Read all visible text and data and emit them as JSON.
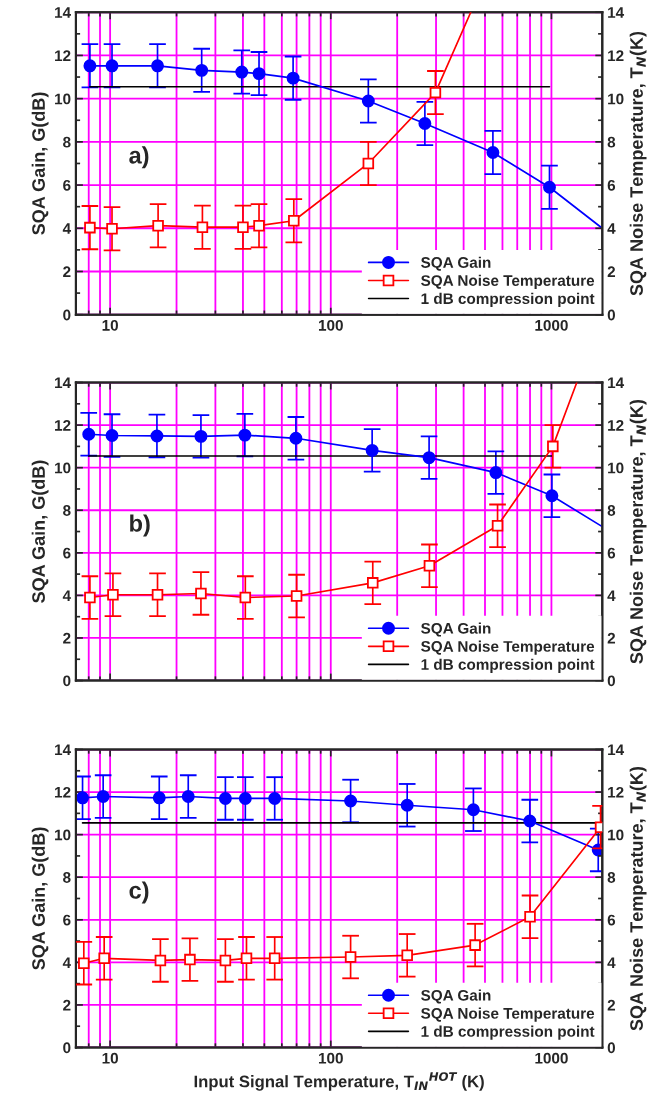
{
  "chart_data": [
    {
      "type": "line",
      "ylabel": "SQA Gain, G(dB)",
      "y2label": "SQA Noise Temperature, T$_{N}$(K)",
      "log": "x",
      "xlim": [
        7,
        1700
      ],
      "xticks": [
        10,
        100,
        1000
      ],
      "ylim": [
        0,
        14
      ],
      "yticks": [
        0,
        2,
        4,
        6,
        8,
        10,
        12,
        14
      ],
      "y2lim": [
        0,
        14
      ],
      "y2ticks": [
        0,
        2,
        4,
        6,
        8,
        10,
        12,
        14
      ],
      "grid": true,
      "legend": "bottom right",
      "annotations": [
        "a)"
      ],
      "series": [
        {
          "name": "SQA Gain",
          "color": "#0000ff",
          "marker": "circle",
          "x": [
            8.1,
            10.2,
            16.4,
            26,
            39.5,
            47.3,
            67.5,
            148,
            267,
            543,
            980
          ],
          "values": [
            11.52,
            11.52,
            11.52,
            11.31,
            11.23,
            11.16,
            10.95,
            9.89,
            8.85,
            7.51,
            5.9
          ],
          "errors": [
            1,
            1,
            1,
            1,
            1,
            1,
            1,
            1,
            1,
            1,
            1
          ]
        },
        {
          "color": "#0000ff",
          "marker": "none",
          "x": [
            980,
            1700
          ],
          "values": [
            5.9,
            4.0
          ]
        },
        {
          "name": "SQA Noise Temperature",
          "color": "#ff0000",
          "marker": "square",
          "axis": "y2",
          "x": [
            8.1,
            10.2,
            16.5,
            26.2,
            40,
            47.3,
            68,
            148,
            298
          ],
          "values": [
            4.03,
            3.98,
            4.12,
            4.05,
            4.05,
            4.12,
            4.35,
            7.0,
            10.28
          ],
          "errors": [
            1,
            1,
            1,
            1,
            1,
            1,
            1,
            1,
            1
          ]
        },
        {
          "color": "#ff0000",
          "marker": "none",
          "axis": "y2",
          "x": [
            298,
            431
          ],
          "values": [
            10.28,
            14
          ]
        },
        {
          "name": "1 dB compression point",
          "color": "#000000",
          "marker": "none",
          "x": [
            8.1,
            980
          ],
          "values": [
            10.55,
            10.55
          ]
        }
      ]
    },
    {
      "type": "line",
      "ylabel": "SQA Gain, G(dB)",
      "y2label": "SQA Noise Temperature, T$_{N}$(K)",
      "log": "x",
      "xlim": [
        7,
        1700
      ],
      "xticks": [
        10,
        100,
        1000
      ],
      "ylim": [
        0,
        14
      ],
      "yticks": [
        0,
        2,
        4,
        6,
        8,
        10,
        12,
        14
      ],
      "y2lim": [
        0,
        14
      ],
      "y2ticks": [
        0,
        2,
        4,
        6,
        8,
        10,
        12,
        14
      ],
      "tick_labels": "y",
      "grid": true,
      "legend": "bottom right",
      "annotations": [
        "b)"
      ],
      "series": [
        {
          "name": "SQA Gain",
          "color": "#0000ff",
          "marker": "circle",
          "x": [
            8.0,
            10.2,
            16.3,
            25.8,
            40.8,
            69.5,
            154,
            279,
            560,
            1005
          ],
          "values": [
            11.57,
            11.51,
            11.49,
            11.47,
            11.53,
            11.38,
            10.81,
            10.47,
            9.77,
            8.68
          ],
          "errors": [
            1,
            1,
            1,
            1,
            1,
            1,
            1,
            1,
            1,
            1
          ]
        },
        {
          "color": "#0000ff",
          "marker": "none",
          "x": [
            1005,
            1700
          ],
          "values": [
            8.68,
            7.23
          ]
        },
        {
          "name": "SQA Noise Temperature",
          "color": "#ff0000",
          "marker": "square",
          "axis": "y2",
          "x": [
            8.1,
            10.3,
            16.4,
            25.8,
            41,
            70,
            155,
            280,
            570,
            1015
          ],
          "values": [
            3.9,
            4.03,
            4.03,
            4.09,
            3.9,
            3.97,
            4.59,
            5.39,
            7.27,
            11.0
          ],
          "errors": [
            1,
            1,
            1,
            1,
            1,
            1,
            1,
            1,
            1,
            1
          ]
        },
        {
          "color": "#ff0000",
          "marker": "none",
          "axis": "y2",
          "x": [
            1015,
            1303
          ],
          "values": [
            11.0,
            14
          ]
        },
        {
          "name": "1 dB compression point",
          "color": "#000000",
          "marker": "none",
          "x": [
            8.0,
            1005
          ],
          "values": [
            10.55,
            10.55
          ]
        }
      ]
    },
    {
      "type": "line",
      "xlabel": "Input Signal Temperature, T$_{IN}$$^{HOT}$ (K)",
      "ylabel": "SQA Gain, G(dB)",
      "y2label": "SQA Noise Temperature, T$_{N}$(K)",
      "log": "x",
      "xlim": [
        7,
        1700
      ],
      "xticks": [
        10,
        100,
        1000
      ],
      "ylim": [
        0,
        14
      ],
      "yticks": [
        0,
        2,
        4,
        6,
        8,
        10,
        12,
        14
      ],
      "y2lim": [
        0,
        14
      ],
      "y2ticks": [
        0,
        2,
        4,
        6,
        8,
        10,
        12,
        14
      ],
      "grid": true,
      "legend": "bottom right",
      "annotations": [
        "c)"
      ],
      "series": [
        {
          "name": "SQA Gain",
          "color": "#0000ff",
          "marker": "circle",
          "x": [
            7.5,
            9.3,
            16.7,
            22.6,
            33.3,
            41,
            55.7,
            123,
            222,
            443,
            798,
            1630
          ],
          "values": [
            11.73,
            11.79,
            11.73,
            11.79,
            11.7,
            11.7,
            11.7,
            11.58,
            11.38,
            11.17,
            10.64,
            9.28
          ],
          "errors": [
            1,
            1,
            1,
            1,
            1,
            1,
            1,
            1,
            1,
            1,
            1,
            1
          ]
        },
        {
          "name": "SQA Noise Temperature",
          "color": "#ff0000",
          "marker": "square",
          "axis": "y2",
          "x": [
            7.6,
            9.4,
            16.9,
            23,
            33.3,
            41.5,
            55.7,
            123,
            222,
            451,
            800,
            1670
          ],
          "values": [
            3.96,
            4.19,
            4.09,
            4.13,
            4.09,
            4.19,
            4.19,
            4.25,
            4.33,
            4.81,
            6.14,
            10.35
          ],
          "errors": [
            1,
            1,
            1,
            1,
            1,
            1,
            1,
            1,
            1,
            1,
            1,
            1
          ]
        },
        {
          "name": "1 dB compression point",
          "color": "#000000",
          "marker": "none",
          "x": [
            7.5,
            1700
          ],
          "values": [
            10.55,
            10.55
          ]
        }
      ]
    }
  ]
}
